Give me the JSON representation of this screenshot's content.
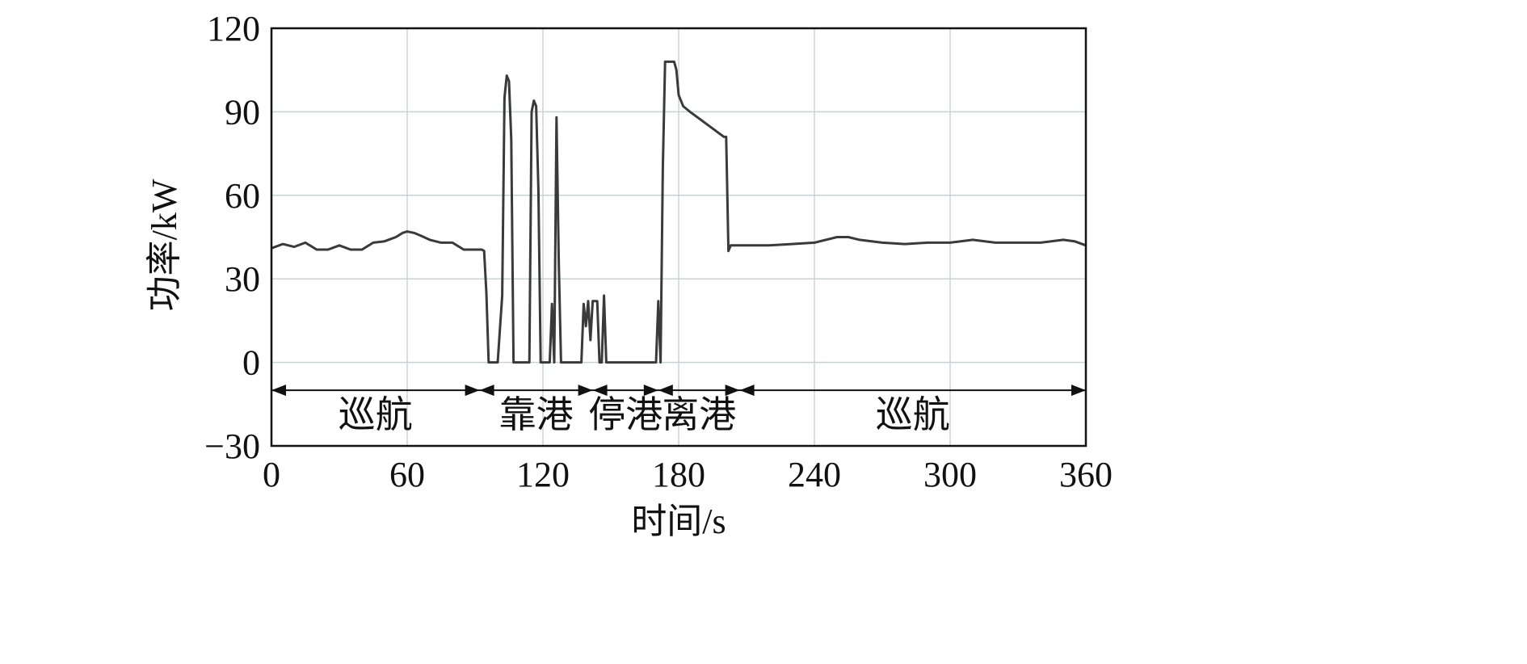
{
  "chart_data": {
    "type": "line",
    "xlabel": "时间/s",
    "ylabel": "功率/kW",
    "xlim": [
      0,
      360
    ],
    "ylim": [
      -30,
      120
    ],
    "xticks": [
      0,
      60,
      120,
      180,
      240,
      300,
      360
    ],
    "yticks": [
      -30,
      0,
      30,
      60,
      90,
      120
    ],
    "x_tick_labels": [
      "0",
      "60",
      "120",
      "180",
      "240",
      "300",
      "360"
    ],
    "y_tick_labels": [
      "−30",
      "0",
      "30",
      "60",
      "90",
      "120"
    ],
    "grid": true,
    "colors": {
      "line": "#3a3a3a",
      "grid": "#c9d3d6",
      "axis": "#111111"
    },
    "series": [
      {
        "x": [
          0,
          5,
          10,
          15,
          20,
          25,
          30,
          35,
          40,
          45,
          50,
          55,
          58,
          60,
          63,
          66,
          70,
          75,
          80,
          85,
          90,
          93,
          94,
          95,
          96,
          98,
          100,
          101,
          102,
          103,
          104,
          105,
          106,
          107,
          108,
          109,
          110,
          111,
          112,
          113,
          114,
          115,
          116,
          117,
          118,
          119,
          120,
          121,
          122,
          123,
          124,
          125,
          126,
          127,
          128,
          129,
          130,
          131,
          132,
          135,
          137,
          138,
          139,
          140,
          141,
          142,
          143,
          144,
          145,
          146,
          147,
          148,
          149,
          150,
          155,
          160,
          165,
          170,
          171,
          172,
          173,
          174,
          175,
          176,
          177,
          178,
          179,
          180,
          182,
          185,
          190,
          195,
          200,
          201,
          202,
          203,
          205,
          210,
          220,
          230,
          240,
          250,
          255,
          260,
          270,
          280,
          290,
          300,
          310,
          320,
          330,
          340,
          350,
          355,
          360
        ],
        "y": [
          41,
          42.5,
          41.5,
          43,
          40.5,
          40.5,
          42,
          40.5,
          40.5,
          43,
          43.5,
          45,
          46.5,
          47,
          46.5,
          45.5,
          44,
          43,
          43,
          40.5,
          40.5,
          40.5,
          40,
          25,
          0,
          0,
          0,
          12,
          24,
          95,
          103,
          101,
          80,
          0,
          0,
          0,
          0,
          0,
          0,
          0,
          0,
          90,
          94,
          92,
          62,
          0,
          0,
          0,
          0,
          0,
          21,
          0,
          88,
          36,
          0,
          0,
          0,
          0,
          0,
          0,
          0,
          21,
          13,
          22,
          8,
          22,
          22,
          22,
          0,
          0,
          24,
          0,
          0,
          0,
          0,
          0,
          0,
          0,
          22,
          0,
          70,
          108,
          108,
          108,
          108,
          108,
          105,
          96,
          92,
          90,
          87,
          84,
          81,
          81,
          40,
          42,
          42,
          42,
          42,
          42.5,
          43,
          45,
          45,
          44,
          43,
          42.5,
          43,
          43,
          44,
          43,
          43,
          43,
          44,
          43.5,
          42
        ]
      }
    ],
    "phases": [
      {
        "label": "巡航",
        "start": 0,
        "end": 92
      },
      {
        "label": "靠港",
        "start": 92,
        "end": 142
      },
      {
        "label": "停港",
        "start": 142,
        "end": 171
      },
      {
        "label": "离港",
        "start": 171,
        "end": 207
      },
      {
        "label": "巡航",
        "start": 207,
        "end": 360
      }
    ],
    "phase_arrow_y": -10
  }
}
